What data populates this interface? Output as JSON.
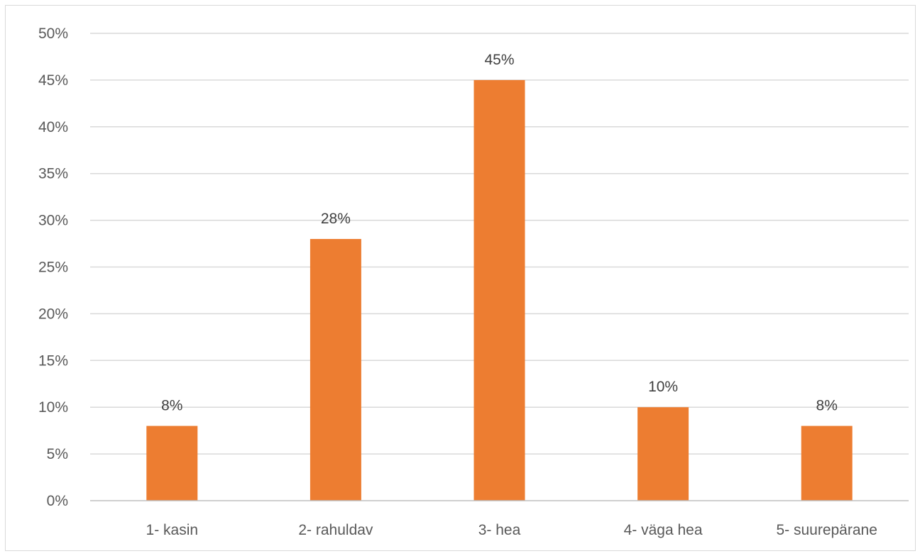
{
  "chart_data": {
    "type": "bar",
    "title": "",
    "xlabel": "",
    "ylabel": "",
    "categories": [
      "1- kasin",
      "2- rahuldav",
      "3- hea",
      "4- väga hea",
      "5- suurepärane"
    ],
    "values": [
      8,
      28,
      45,
      10,
      8
    ],
    "data_labels": [
      "8%",
      "28%",
      "45%",
      "10%",
      "8%"
    ],
    "ylim": [
      0,
      50
    ],
    "y_ticks": [
      0,
      5,
      10,
      15,
      20,
      25,
      30,
      35,
      40,
      45,
      50
    ],
    "y_tick_labels": [
      "0%",
      "5%",
      "10%",
      "15%",
      "20%",
      "25%",
      "30%",
      "35%",
      "40%",
      "45%",
      "50%"
    ],
    "grid": true,
    "legend": "none",
    "bar_color": "#ED7D31"
  }
}
